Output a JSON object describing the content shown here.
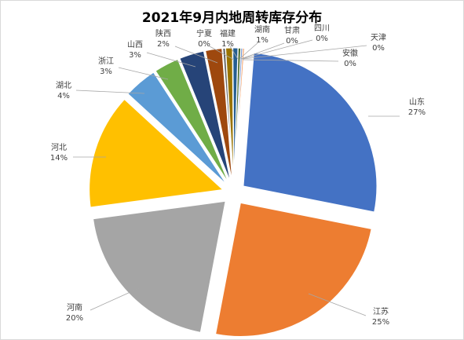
{
  "chart_data": {
    "type": "pie",
    "title": "2021年9月内地周转库存分布",
    "exploded": true,
    "slices": [
      {
        "name": "山东",
        "value": 27,
        "label": "27%",
        "color": "#4472C4"
      },
      {
        "name": "江苏",
        "value": 25,
        "label": "25%",
        "color": "#ED7D31"
      },
      {
        "name": "河南",
        "value": 20,
        "label": "20%",
        "color": "#A5A5A5"
      },
      {
        "name": "河北",
        "value": 14,
        "label": "14%",
        "color": "#FFC000"
      },
      {
        "name": "湖北",
        "value": 4,
        "label": "4%",
        "color": "#5B9BD5"
      },
      {
        "name": "浙江",
        "value": 3,
        "label": "3%",
        "color": "#70AD47"
      },
      {
        "name": "山西",
        "value": 3,
        "label": "3%",
        "color": "#264478"
      },
      {
        "name": "陕西",
        "value": 2,
        "label": "2%",
        "color": "#9E480E"
      },
      {
        "name": "宁夏",
        "value": 0.3,
        "label": "0%",
        "color": "#636363"
      },
      {
        "name": "福建",
        "value": 0.8,
        "label": "1%",
        "color": "#997300"
      },
      {
        "name": "湖南",
        "value": 0.6,
        "label": "1%",
        "color": "#255E91"
      },
      {
        "name": "甘肃",
        "value": 0.3,
        "label": "0%",
        "color": "#43682B"
      },
      {
        "name": "四川",
        "value": 0.2,
        "label": "0%",
        "color": "#698ED0"
      },
      {
        "name": "天津",
        "value": 0.2,
        "label": "0%",
        "color": "#F1975A"
      },
      {
        "name": "安徽",
        "value": 0.1,
        "label": "0%",
        "color": "#B7B7B7"
      }
    ]
  }
}
